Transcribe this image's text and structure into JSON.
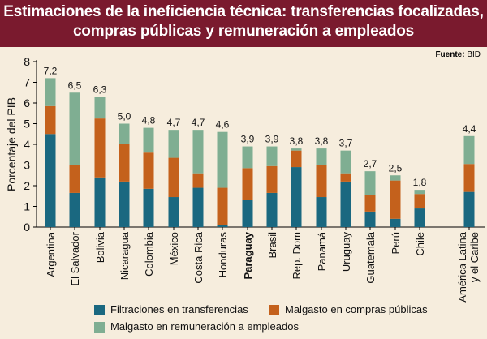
{
  "title": {
    "line1": "Estimaciones de la ineficiencia técnica: transferencias focalizadas,",
    "line2": "compras públicas y remuneración a empleados"
  },
  "source": {
    "label": "Fuente:",
    "value": "BID"
  },
  "colors": {
    "title_bg": "#7a1a2e",
    "background": "#f6eddd",
    "filtraciones": "#1a6880",
    "compras": "#c4611c",
    "remuneracion": "#7fae92"
  },
  "chart_data": {
    "type": "bar",
    "stacked": true,
    "ylabel": "Porcentaje del PIB",
    "ylim": [
      0,
      8
    ],
    "yticks": [
      0,
      1,
      2,
      3,
      4,
      5,
      6,
      7,
      8
    ],
    "grid": false,
    "legend_position": "bottom",
    "categories": [
      "Argentina",
      "El Salvador",
      "Bolivia",
      "Nicaragua",
      "Colombia",
      "México",
      "Costa Rica",
      "Honduras",
      "Paraguay",
      "Brasil",
      "Rep. Dom",
      "Panamá",
      "Uruguay",
      "Guatemala",
      "Perú",
      "Chile",
      "América Latina y el Caribe"
    ],
    "bold_categories": [
      "Paraguay"
    ],
    "series": [
      {
        "name": "Filtraciones en transferencias",
        "color": "#1a6880",
        "values": [
          4.5,
          1.65,
          2.4,
          2.2,
          1.85,
          1.45,
          1.9,
          0.1,
          1.3,
          1.65,
          2.9,
          1.45,
          2.2,
          0.75,
          0.4,
          0.9,
          1.7
        ]
      },
      {
        "name": "Malgasto en compras públicas",
        "color": "#c4611c",
        "values": [
          1.35,
          1.35,
          2.85,
          1.8,
          1.75,
          1.9,
          0.7,
          1.8,
          1.55,
          1.3,
          0.8,
          1.55,
          0.4,
          0.8,
          1.85,
          0.7,
          1.35
        ]
      },
      {
        "name": "Malgasto en remuneración a empleados",
        "color": "#7fae92",
        "values": [
          1.35,
          3.5,
          1.05,
          1.0,
          1.2,
          1.35,
          2.1,
          2.7,
          1.05,
          0.95,
          0.1,
          0.8,
          1.1,
          1.15,
          0.25,
          0.2,
          1.35
        ]
      }
    ],
    "totals": [
      7.2,
      6.5,
      6.3,
      5.0,
      4.8,
      4.7,
      4.7,
      4.6,
      3.9,
      3.9,
      3.8,
      3.8,
      3.7,
      2.7,
      2.5,
      1.8,
      4.4
    ],
    "total_labels": [
      "7,2",
      "6,5",
      "6,3",
      "5,0",
      "4,8",
      "4,7",
      "4,7",
      "4,6",
      "3,9",
      "3,9",
      "3,8",
      "3,8",
      "3,7",
      "2,7",
      "2,5",
      "1,8",
      "4,4"
    ]
  }
}
